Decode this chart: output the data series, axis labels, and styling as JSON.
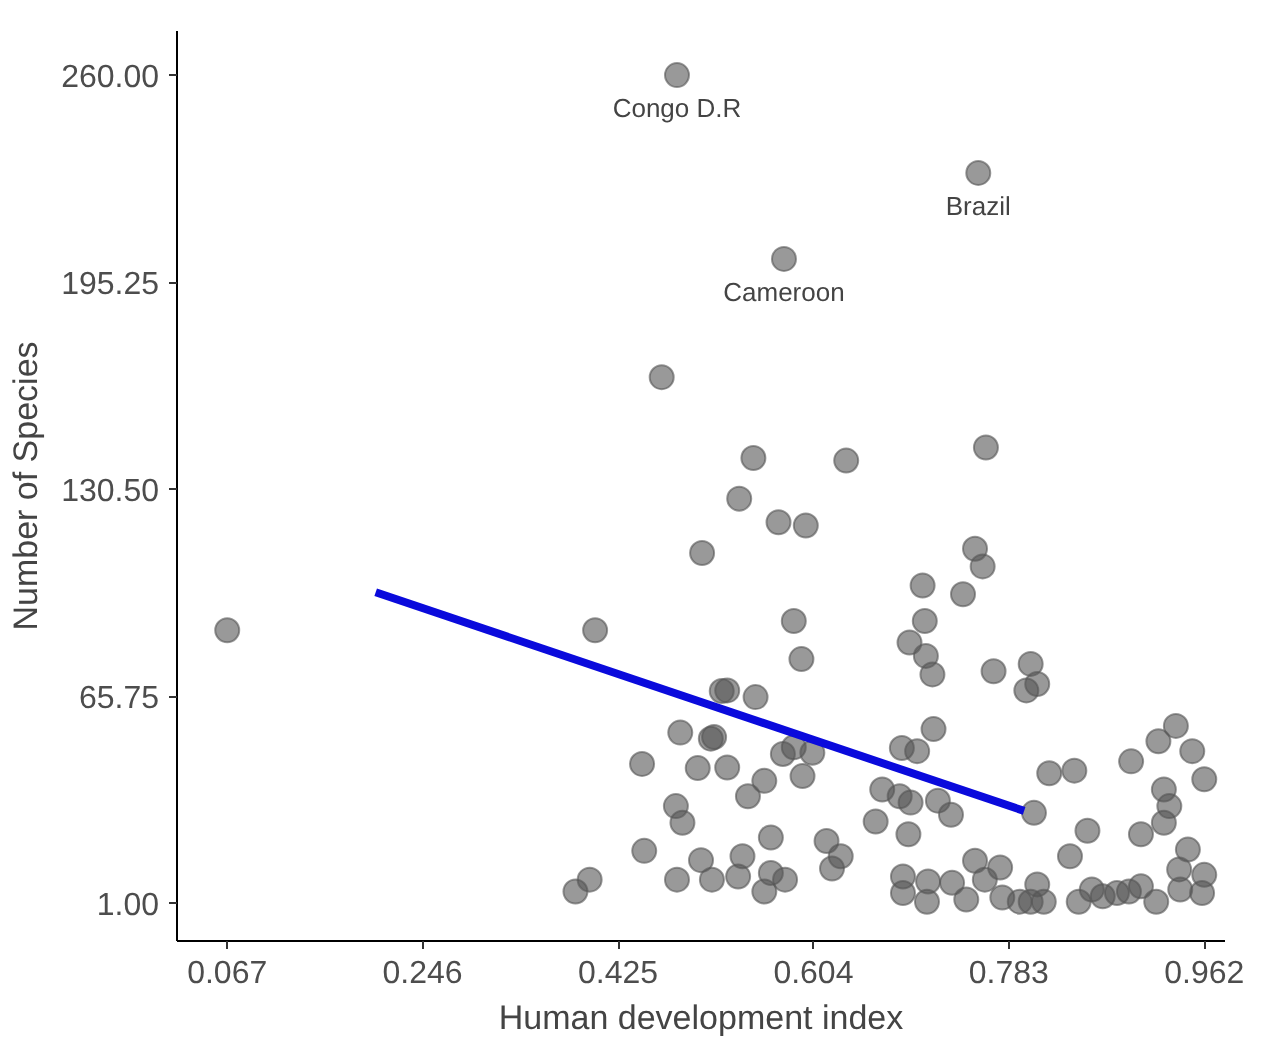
{
  "chart_data": {
    "type": "scatter",
    "xlabel": "Human development index",
    "ylabel": "Number of Species",
    "xlim": [
      0.021,
      0.981
    ],
    "ylim": [
      -10.9,
      273.8
    ],
    "xticks": [
      0.067,
      0.246,
      0.425,
      0.604,
      0.783,
      0.962
    ],
    "yticks": [
      {
        "value": 1,
        "label": "1.00"
      },
      {
        "value": 65.75,
        "label": "65.75"
      },
      {
        "value": 130.5,
        "label": "130.50"
      },
      {
        "value": 195.25,
        "label": "195.25"
      },
      {
        "value": 260,
        "label": "260.00"
      }
    ],
    "grid": false,
    "annotations": [
      {
        "text": "Congo D.R",
        "x": 0.479,
        "y": 260
      },
      {
        "text": "Brazil",
        "x": 0.755,
        "y": 229.4
      },
      {
        "text": "Cameroon",
        "x": 0.577,
        "y": 202.5
      }
    ],
    "series": [
      {
        "marker": "circle",
        "color": "#555555",
        "x": [
          0.479,
          0.465,
          0.755,
          0.577,
          0.549,
          0.634,
          0.762,
          0.067,
          0.404,
          0.502,
          0.482,
          0.51,
          0.447,
          0.498,
          0.478,
          0.484,
          0.449,
          0.501,
          0.479,
          0.511,
          0.399,
          0.386,
          0.52,
          0.536,
          0.572,
          0.597,
          0.752,
          0.759,
          0.704,
          0.741,
          0.586,
          0.706,
          0.692,
          0.707,
          0.713,
          0.593,
          0.769,
          0.803,
          0.809,
          0.799,
          0.525,
          0.551,
          0.513,
          0.525,
          0.576,
          0.586,
          0.603,
          0.559,
          0.594,
          0.544,
          0.714,
          0.685,
          0.699,
          0.667,
          0.683,
          0.693,
          0.718,
          0.73,
          0.806,
          0.82,
          0.843,
          0.895,
          0.92,
          0.936,
          0.951,
          0.962,
          0.925,
          0.93,
          0.925,
          0.904,
          0.855,
          0.839,
          0.661,
          0.691,
          0.565,
          0.616,
          0.629,
          0.621,
          0.539,
          0.535,
          0.565,
          0.578,
          0.559,
          0.947,
          0.939,
          0.962,
          0.94,
          0.96,
          0.686,
          0.709,
          0.686,
          0.708,
          0.731,
          0.744,
          0.752,
          0.761,
          0.775,
          0.777,
          0.793,
          0.803,
          0.809,
          0.815,
          0.847,
          0.859,
          0.869,
          0.882,
          0.893,
          0.904,
          0.918
        ],
        "values": [
          260,
          165.5,
          229.4,
          202.5,
          140.2,
          139.4,
          143.5,
          86.3,
          86.3,
          110.5,
          54.3,
          52.4,
          44.5,
          43.2,
          31.3,
          26.1,
          17.3,
          14.4,
          8.3,
          8.3,
          8.3,
          4.6,
          67.3,
          127.5,
          120.1,
          119.1,
          111.8,
          106.3,
          100.3,
          97.6,
          89.2,
          89.2,
          82.5,
          78.3,
          72.5,
          77.3,
          73.5,
          75.8,
          69.5,
          67.5,
          67.5,
          65.4,
          52.9,
          43.4,
          47.6,
          49.7,
          48,
          39.2,
          40.7,
          34.4,
          55.4,
          49.5,
          48.5,
          36.5,
          34.4,
          32.4,
          33,
          28.6,
          29.2,
          41.6,
          42.4,
          45.3,
          51.6,
          56.4,
          48.5,
          39.7,
          36.5,
          31.3,
          26.1,
          22.5,
          23.6,
          15.6,
          26.5,
          22.5,
          21.5,
          20.4,
          15.6,
          11.8,
          15.6,
          9.3,
          10.4,
          8.3,
          4.6,
          17.7,
          11.5,
          9.8,
          5.2,
          4.1,
          9.3,
          7.7,
          4.1,
          1.4,
          7.3,
          2.1,
          14.2,
          8.3,
          12.1,
          2.7,
          1.4,
          1.4,
          6.8,
          1.4,
          1.4,
          5.2,
          3.1,
          4.1,
          4.6,
          6.2,
          1.4
        ]
      },
      {
        "type": "line",
        "color": "#0a0adc",
        "line_style": "solid",
        "x": [
          0.203,
          0.797
        ],
        "values": [
          98.2,
          29.8
        ]
      }
    ]
  }
}
